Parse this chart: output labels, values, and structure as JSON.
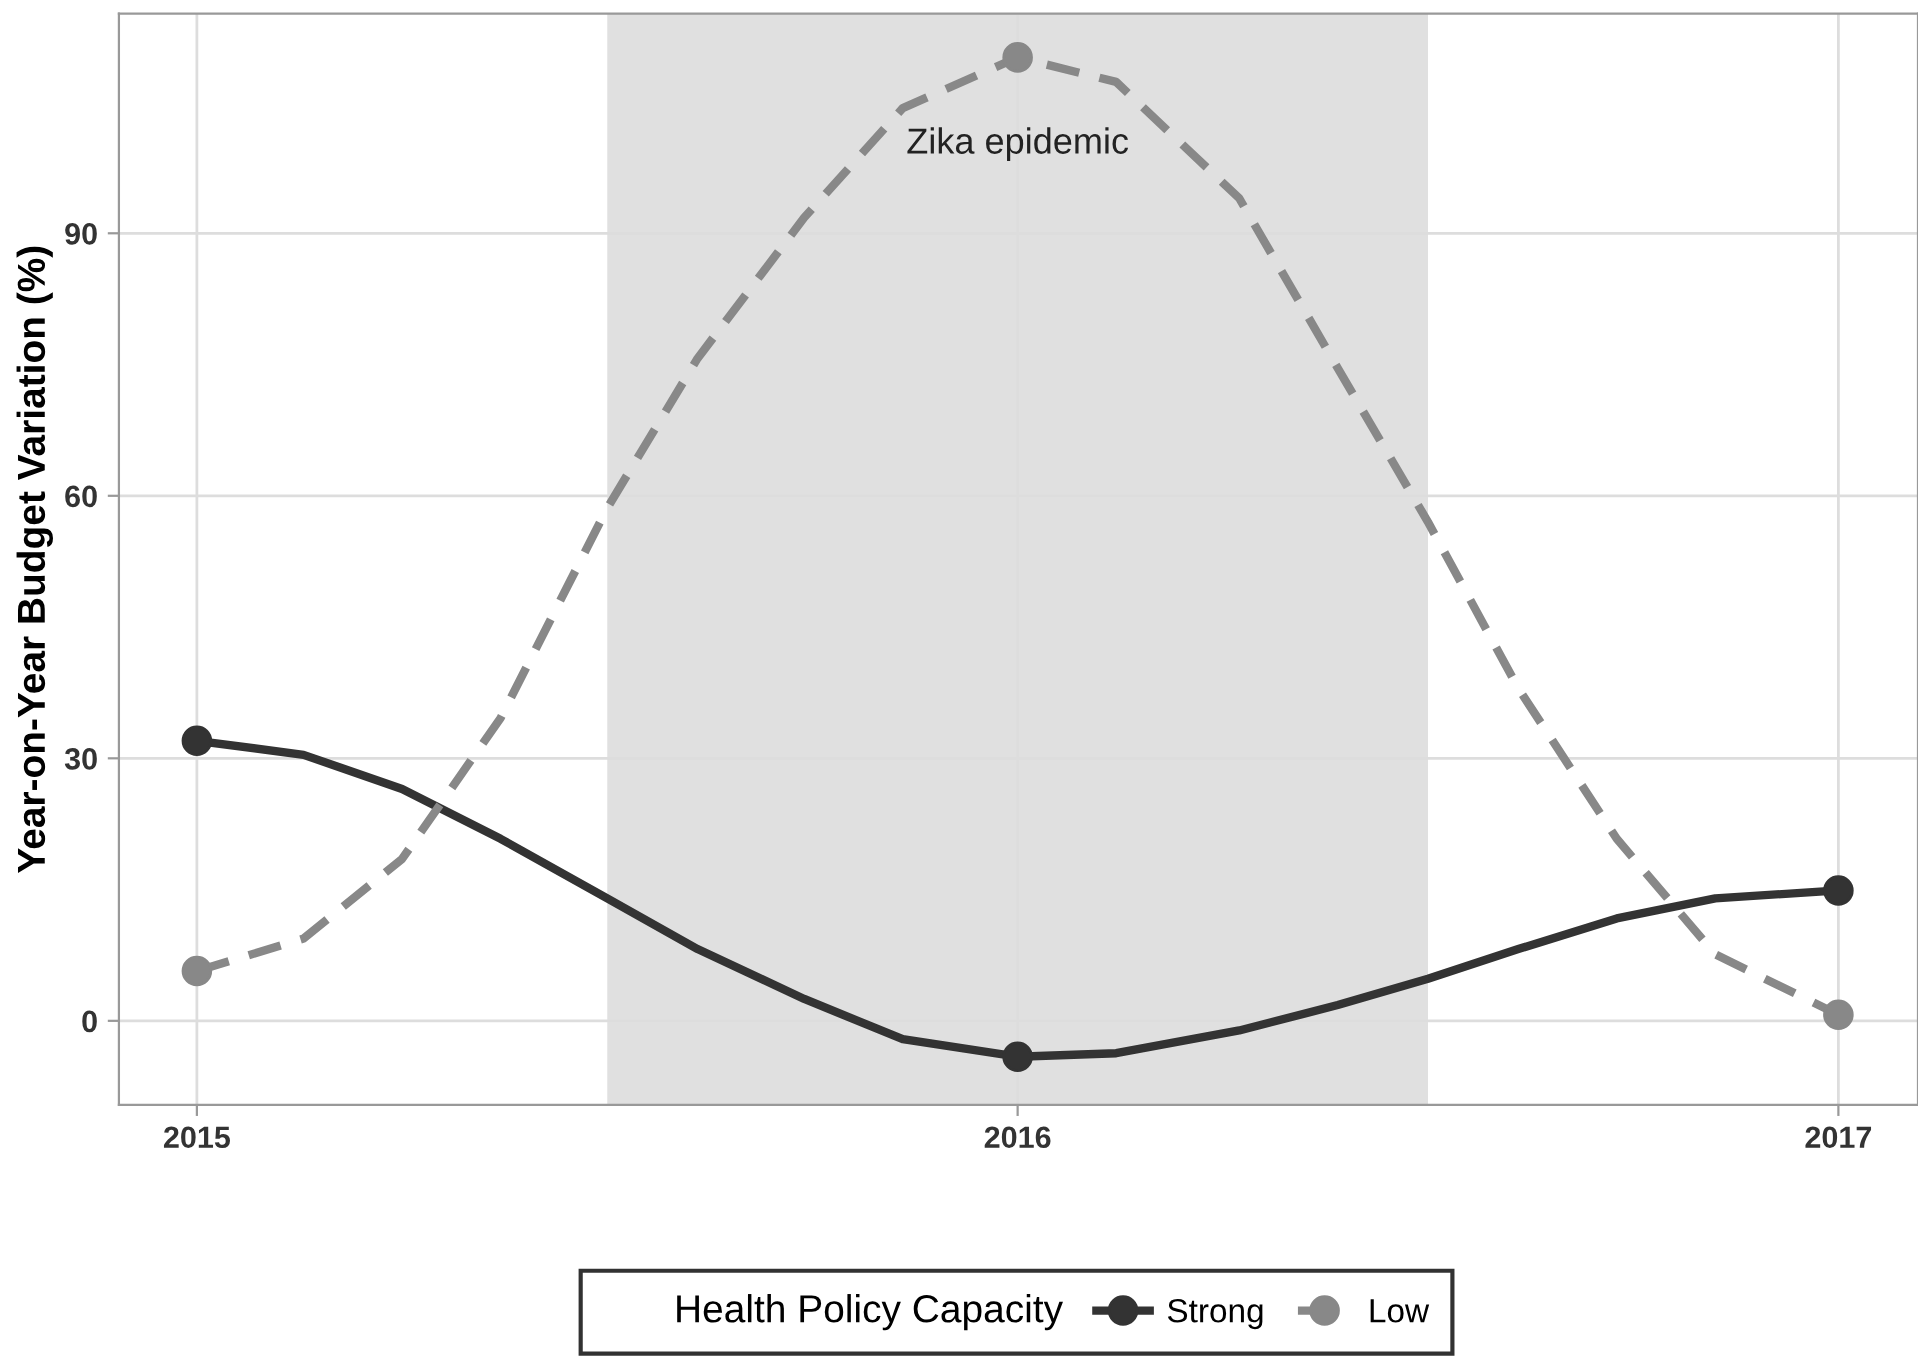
{
  "chart_data": {
    "type": "line",
    "ylabel": "Year-on-Year Budget Variation (%)",
    "legend_title": "Health Policy Capacity",
    "series": [
      {
        "name": "Strong",
        "color": "#333333",
        "line_style": "solid",
        "marker": "none",
        "x": [
          2015,
          2015.13,
          2015.25,
          2015.37,
          2015.5,
          2015.61,
          2015.74,
          2015.86,
          2016,
          2016.12,
          2016.27,
          2016.39,
          2016.5,
          2016.61,
          2016.73,
          2016.85,
          2017
        ],
        "values": [
          32.0,
          30.4,
          26.5,
          20.8,
          14.0,
          8.2,
          2.5,
          -2.1,
          -4.1,
          -3.7,
          -1.1,
          1.8,
          4.8,
          8.2,
          11.7,
          14.0,
          14.9
        ]
      },
      {
        "name": "Low",
        "color": "#888888",
        "line_style": "dashed",
        "marker": "none",
        "x": [
          2015,
          2015.13,
          2015.25,
          2015.37,
          2015.5,
          2015.61,
          2015.74,
          2015.86,
          2016,
          2016.12,
          2016.27,
          2016.39,
          2016.5,
          2016.61,
          2016.73,
          2016.85,
          2017
        ],
        "values": [
          5.7,
          9.4,
          18.5,
          34.6,
          58.6,
          75.7,
          91.8,
          104.3,
          110.1,
          107.3,
          94.0,
          74.6,
          57.0,
          38.0,
          20.8,
          7.6,
          0.7
        ]
      },
      {
        "type": "scatter",
        "color": "#333333",
        "x": [
          2015,
          2016,
          2017
        ],
        "values": [
          32.0,
          -4.1,
          14.9
        ]
      },
      {
        "type": "scatter",
        "color": "#888888",
        "x": [
          2015,
          2016,
          2017
        ],
        "values": [
          5.7,
          110.1,
          0.7
        ]
      }
    ],
    "xlim": [
      2014.905,
      2017.097
    ],
    "xticks": [
      2015,
      2016,
      2017
    ],
    "ylim": [
      -9.6,
      115.1
    ],
    "yticks": [
      0,
      30,
      60,
      90
    ],
    "bands": [
      {
        "axis": "x",
        "from": 2015.5,
        "to": 2016.5,
        "color": "#e0e0e0",
        "label": "Zika epidemic"
      }
    ],
    "marker": "circle",
    "grid": true,
    "legend": "bottom"
  }
}
